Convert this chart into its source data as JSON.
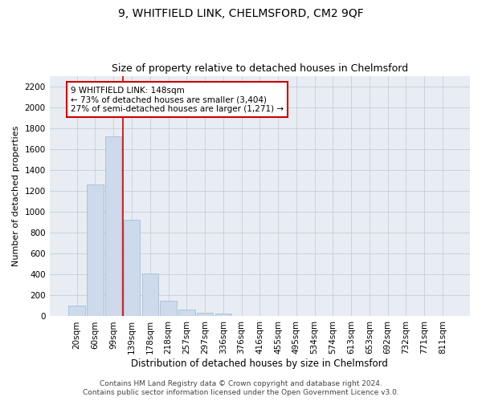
{
  "title": "9, WHITFIELD LINK, CHELMSFORD, CM2 9QF",
  "subtitle": "Size of property relative to detached houses in Chelmsford",
  "xlabel": "Distribution of detached houses by size in Chelmsford",
  "ylabel": "Number of detached properties",
  "categories": [
    "20sqm",
    "60sqm",
    "99sqm",
    "139sqm",
    "178sqm",
    "218sqm",
    "257sqm",
    "297sqm",
    "336sqm",
    "376sqm",
    "416sqm",
    "455sqm",
    "495sqm",
    "534sqm",
    "574sqm",
    "613sqm",
    "653sqm",
    "692sqm",
    "732sqm",
    "771sqm",
    "811sqm"
  ],
  "values": [
    100,
    1260,
    1720,
    925,
    410,
    150,
    65,
    35,
    25,
    0,
    0,
    0,
    0,
    0,
    0,
    0,
    0,
    0,
    0,
    0,
    0
  ],
  "bar_color": "#ccdaeb",
  "bar_edge_color": "#aabdd4",
  "vline_x_index": 2.5,
  "vline_color": "#cc0000",
  "annotation_text": "9 WHITFIELD LINK: 148sqm\n← 73% of detached houses are smaller (3,404)\n27% of semi-detached houses are larger (1,271) →",
  "annotation_box_facecolor": "#ffffff",
  "annotation_box_edgecolor": "#cc0000",
  "ylim": [
    0,
    2300
  ],
  "yticks": [
    0,
    200,
    400,
    600,
    800,
    1000,
    1200,
    1400,
    1600,
    1800,
    2000,
    2200
  ],
  "footer_line1": "Contains HM Land Registry data © Crown copyright and database right 2024.",
  "footer_line2": "Contains public sector information licensed under the Open Government Licence v3.0.",
  "bg_color": "#ffffff",
  "plot_bg_color": "#e8edf4",
  "grid_color": "#c5cdd9",
  "title_fontsize": 10,
  "subtitle_fontsize": 9,
  "ylabel_fontsize": 8,
  "xlabel_fontsize": 8.5,
  "tick_fontsize": 7.5,
  "annot_fontsize": 7.5,
  "footer_fontsize": 6.5
}
